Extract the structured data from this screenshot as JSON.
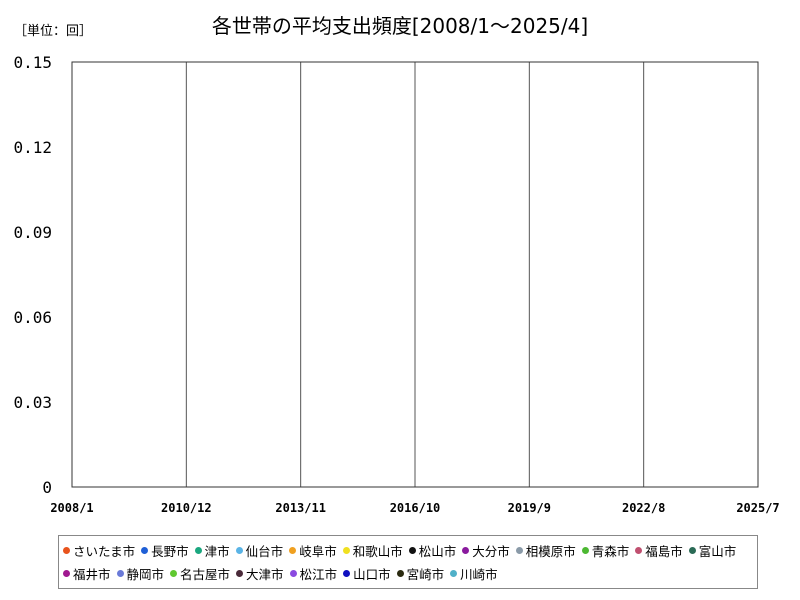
{
  "unit_label": "［単位：回］",
  "chart_data": {
    "type": "line",
    "title": "各世帯の平均支出頻度[2008/1～2025/4]",
    "xlabel": "",
    "ylabel": "",
    "x_tick_labels": [
      "2008/1",
      "2010/12",
      "2013/11",
      "2016/10",
      "2019/9",
      "2022/8",
      "2025/7"
    ],
    "y_tick_labels": [
      "0",
      "0.03",
      "0.06",
      "0.09",
      "0.12",
      "0.15"
    ],
    "ylim": [
      0,
      0.15
    ],
    "xlim": [
      "2008/1",
      "2025/7"
    ],
    "grid": {
      "vertical": true,
      "horizontal": false
    },
    "legend_position": "bottom",
    "series": [
      {
        "name": "さいたま市",
        "color": "#e8531c",
        "values": []
      },
      {
        "name": "長野市",
        "color": "#1f5fd6",
        "values": []
      },
      {
        "name": "津市",
        "color": "#1aa77f",
        "values": []
      },
      {
        "name": "仙台市",
        "color": "#5ab4e6",
        "values": []
      },
      {
        "name": "岐阜市",
        "color": "#f0a020",
        "values": []
      },
      {
        "name": "和歌山市",
        "color": "#f0e020",
        "values": []
      },
      {
        "name": "松山市",
        "color": "#111111",
        "values": []
      },
      {
        "name": "大分市",
        "color": "#8a1a9e",
        "values": []
      },
      {
        "name": "相模原市",
        "color": "#8a9aa8",
        "values": []
      },
      {
        "name": "青森市",
        "color": "#4cb832",
        "values": []
      },
      {
        "name": "福島市",
        "color": "#c05070",
        "values": []
      },
      {
        "name": "富山市",
        "color": "#2a6a55",
        "values": []
      },
      {
        "name": "福井市",
        "color": "#a01890",
        "values": []
      },
      {
        "name": "静岡市",
        "color": "#6a7ad8",
        "values": []
      },
      {
        "name": "名古屋市",
        "color": "#60c830",
        "values": []
      },
      {
        "name": "大津市",
        "color": "#4a2a3a",
        "values": []
      },
      {
        "name": "松江市",
        "color": "#8a4ae0",
        "values": []
      },
      {
        "name": "山口市",
        "color": "#1010c0",
        "values": []
      },
      {
        "name": "宮崎市",
        "color": "#2a2a10",
        "values": []
      },
      {
        "name": "川崎市",
        "color": "#50b0c8",
        "values": []
      }
    ]
  }
}
